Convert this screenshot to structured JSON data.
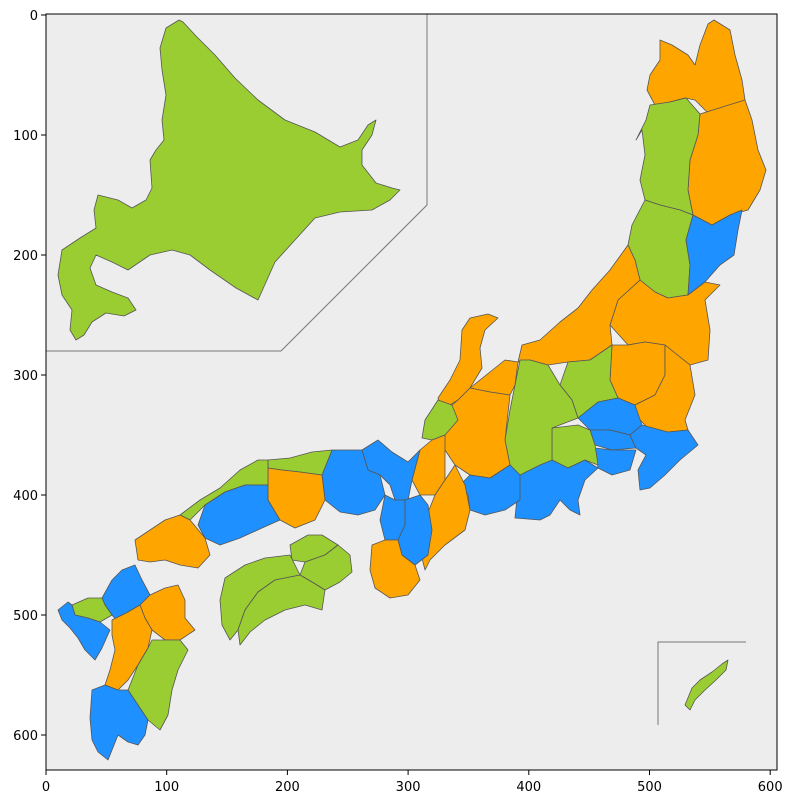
{
  "map": {
    "colors": {
      "background": "#eeeded",
      "green": "#9acd32",
      "orange": "#ffa500",
      "blue": "#1e90ff",
      "border": "#555555",
      "frame": "#000000",
      "inset_line": "#777777"
    },
    "x_axis": {
      "ticks": [
        "0",
        "100",
        "200",
        "300",
        "400",
        "500",
        "600"
      ]
    },
    "y_axis": {
      "ticks": [
        "0",
        "100",
        "200",
        "300",
        "400",
        "500",
        "600"
      ]
    },
    "insets": [
      "hokkaido-inset",
      "okinawa-inset"
    ]
  }
}
